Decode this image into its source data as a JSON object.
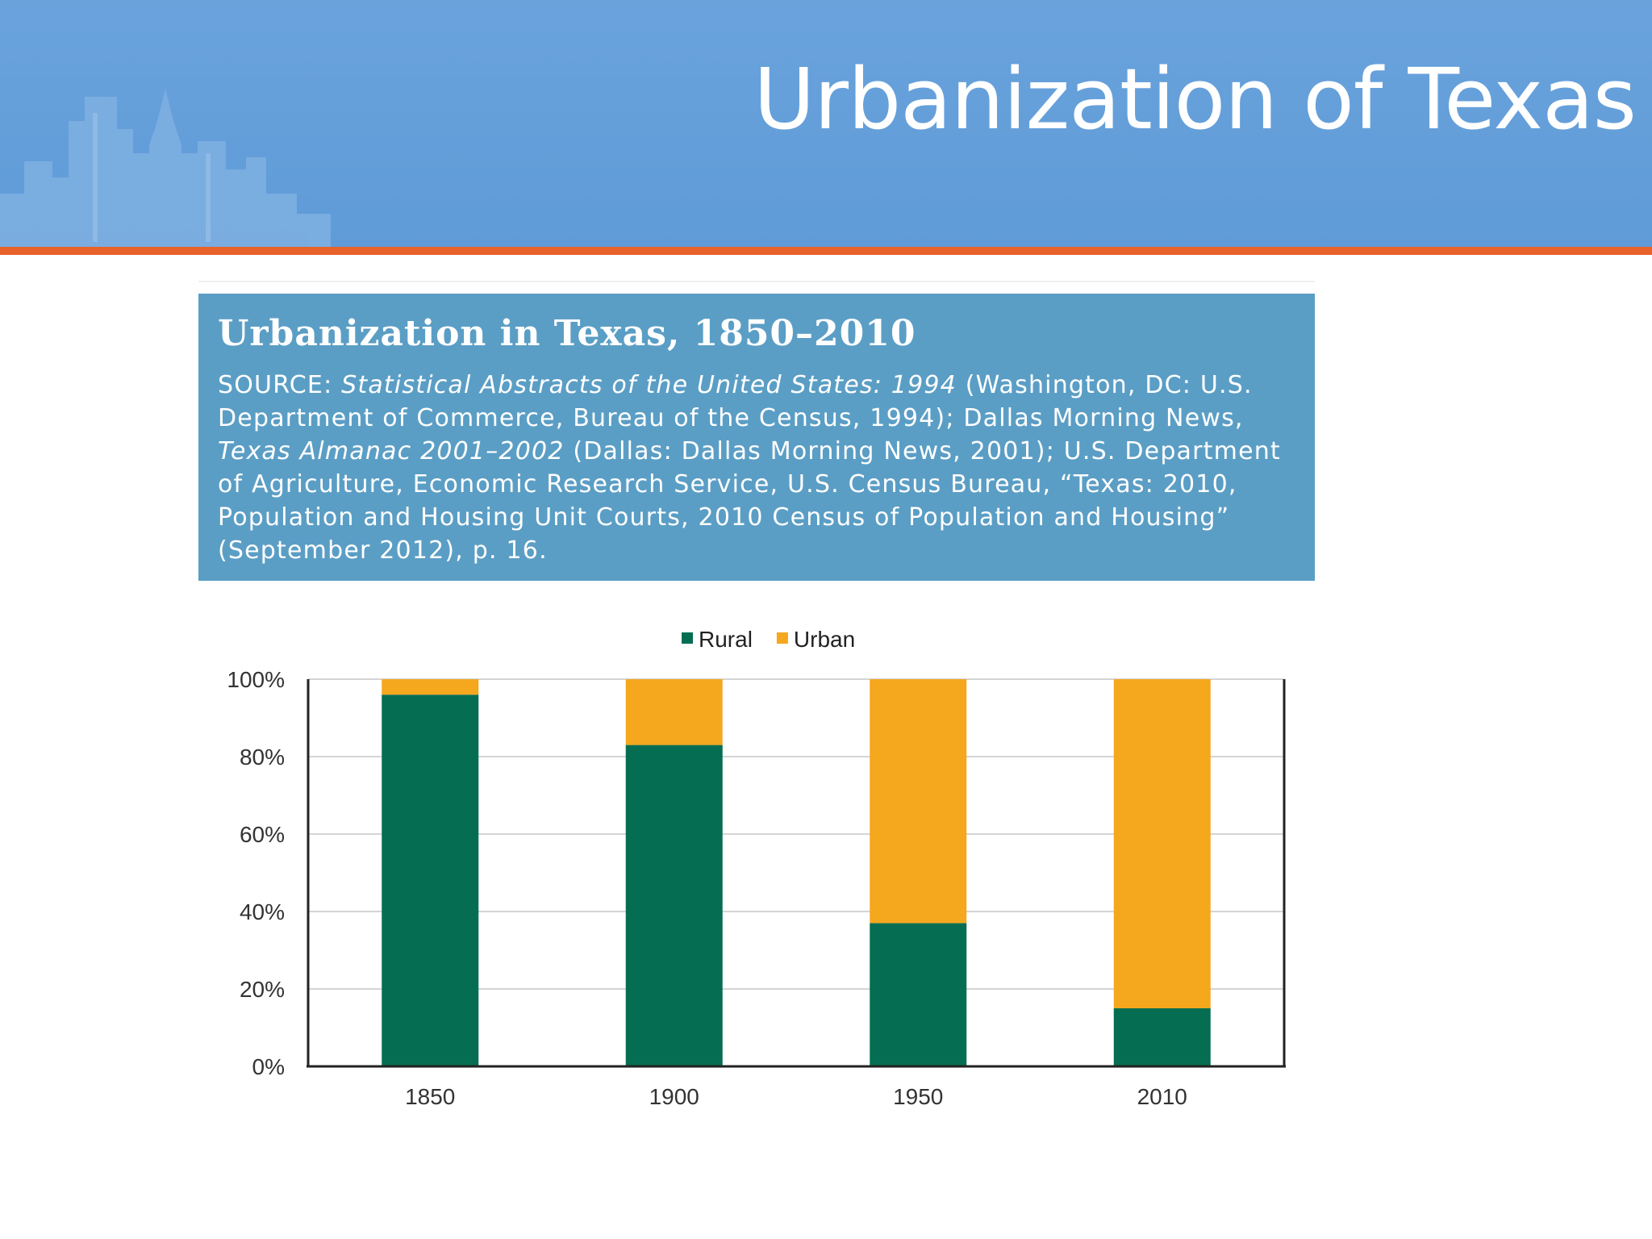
{
  "slide": {
    "title": "Urbanization of Texas"
  },
  "figure": {
    "title": "Urbanization in Texas, 1850–2010",
    "source": {
      "prefix": "SOURCE: ",
      "pub1": "Statistical Abstracts of the United States: 1994",
      "text1": " (Washington, DC: U.S. Department of Commerce, Bureau of the Census, 1994); Dallas Morning News, ",
      "pub2": "Texas Almanac 2001–2002",
      "text2": " (Dallas: Dallas Morning News, 2001); U.S. Department of Agriculture, Economic Research Service, U.S. Census Bureau, “Texas: 2010, Population and Housing Unit Courts, 2010 Census of Population and Housing” (September 2012), p. 16."
    }
  },
  "chart_data": {
    "type": "bar",
    "stacked": true,
    "categories": [
      "1850",
      "1900",
      "1950",
      "2010"
    ],
    "series": [
      {
        "name": "Rural",
        "values": [
          96,
          83,
          37,
          15
        ],
        "color": "#056e52"
      },
      {
        "name": "Urban",
        "values": [
          4,
          17,
          63,
          85
        ],
        "color": "#f5a71e"
      }
    ],
    "yticks": [
      "0%",
      "20%",
      "40%",
      "60%",
      "80%",
      "100%"
    ],
    "ylim": [
      0,
      100
    ],
    "grid": true,
    "legend": "top-center",
    "title": "",
    "xlabel": "",
    "ylabel": ""
  }
}
